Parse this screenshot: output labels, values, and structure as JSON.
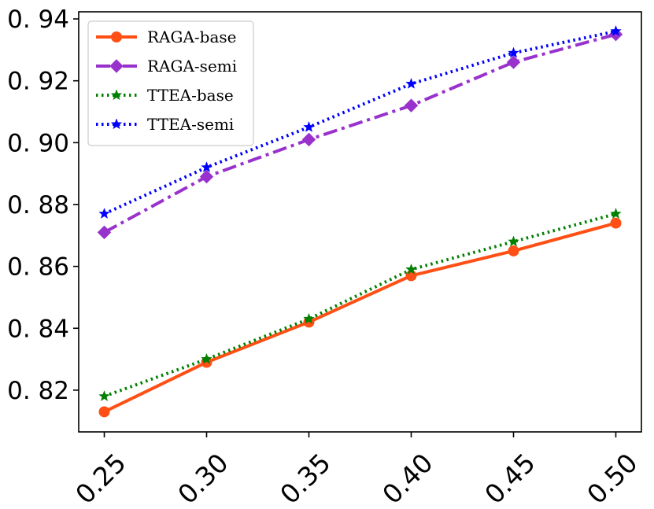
{
  "chart_data": {
    "type": "line",
    "title": "",
    "xlabel": "",
    "ylabel": "",
    "x": [
      0.25,
      0.3,
      0.35,
      0.4,
      0.45,
      0.5
    ],
    "x_tick_labels": [
      "0.25",
      "0.30",
      "0.35",
      "0.40",
      "0.45",
      "0.50"
    ],
    "y_ticks": [
      0.82,
      0.84,
      0.86,
      0.88,
      0.9,
      0.92,
      0.94
    ],
    "y_tick_labels": [
      "0. 82",
      "0. 84",
      "0. 86",
      "0. 88",
      "0. 90",
      "0. 92",
      "0. 94"
    ],
    "ylim": [
      0.8065,
      0.9423
    ],
    "xlim": [
      0.2375,
      0.5125
    ],
    "grid": false,
    "legend_position": "top-left",
    "series": [
      {
        "name": "RAGA-base",
        "color": "#ff4f14",
        "marker": "circle",
        "line_style": "solid",
        "values": [
          0.813,
          0.829,
          0.842,
          0.857,
          0.865,
          0.874
        ]
      },
      {
        "name": "RAGA-semi",
        "color": "#9932cc",
        "marker": "diamond",
        "line_style": "dashdot",
        "values": [
          0.871,
          0.889,
          0.901,
          0.912,
          0.926,
          0.935
        ]
      },
      {
        "name": "TTEA-base",
        "color": "#008000",
        "marker": "star",
        "line_style": "dotted",
        "values": [
          0.818,
          0.83,
          0.843,
          0.859,
          0.868,
          0.877
        ]
      },
      {
        "name": "TTEA-semi",
        "color": "#0000ff",
        "marker": "star",
        "line_style": "dotted",
        "values": [
          0.877,
          0.892,
          0.905,
          0.919,
          0.929,
          0.936
        ]
      }
    ]
  }
}
